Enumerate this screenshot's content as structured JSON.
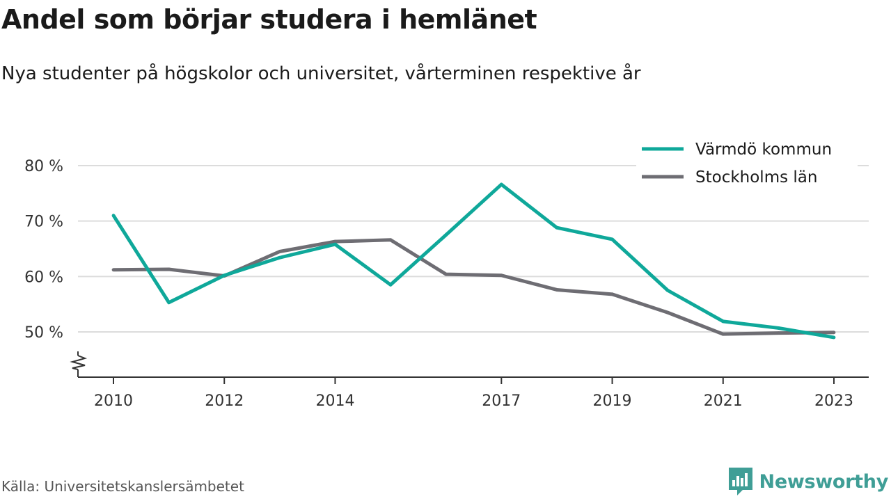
{
  "header": {
    "title": "Andel som börjar studera i hemlänet",
    "subtitle": "Nya studenter på högskolor och universitet, vårterminen respektive år"
  },
  "footer": {
    "source": "Källa: Universitetskanslersämbetet",
    "brand": "Newsworthy",
    "brand_icon": "newsworthy-logo-icon"
  },
  "colors": {
    "varmdo": "#0fa89a",
    "stockholm": "#6e6d73",
    "grid": "#dcdcdc",
    "axis": "#333333",
    "brand": "#3f9e96"
  },
  "chart_data": {
    "type": "line",
    "title": "Andel som börjar studera i hemlänet",
    "subtitle": "Nya studenter på högskolor och universitet, vårterminen respektive år",
    "xlabel": "",
    "ylabel": "",
    "x": [
      2010,
      2011,
      2012,
      2013,
      2014,
      2015,
      2016,
      2017,
      2018,
      2019,
      2020,
      2021,
      2022,
      2023
    ],
    "x_tick_labels": [
      "2010",
      "2012",
      "2014",
      "2017",
      "2019",
      "2021",
      "2023"
    ],
    "y_ticks": [
      50,
      60,
      70,
      80
    ],
    "y_tick_labels": [
      "50 %",
      "60 %",
      "70 %",
      "80 %"
    ],
    "ylim": [
      42,
      84
    ],
    "y_axis_break": true,
    "grid": true,
    "legend_position": "top-right",
    "series": [
      {
        "name": "Värmdö kommun",
        "color": "#0fa89a",
        "values": [
          71.0,
          55.3,
          60.2,
          63.4,
          65.8,
          58.5,
          67.5,
          76.6,
          68.8,
          66.7,
          57.5,
          51.9,
          50.7,
          49.0
        ]
      },
      {
        "name": "Stockholms län",
        "color": "#6e6d73",
        "values": [
          61.2,
          61.3,
          60.1,
          64.5,
          66.3,
          66.6,
          60.4,
          60.2,
          57.6,
          56.8,
          53.5,
          49.6,
          49.8,
          49.9
        ]
      }
    ]
  }
}
